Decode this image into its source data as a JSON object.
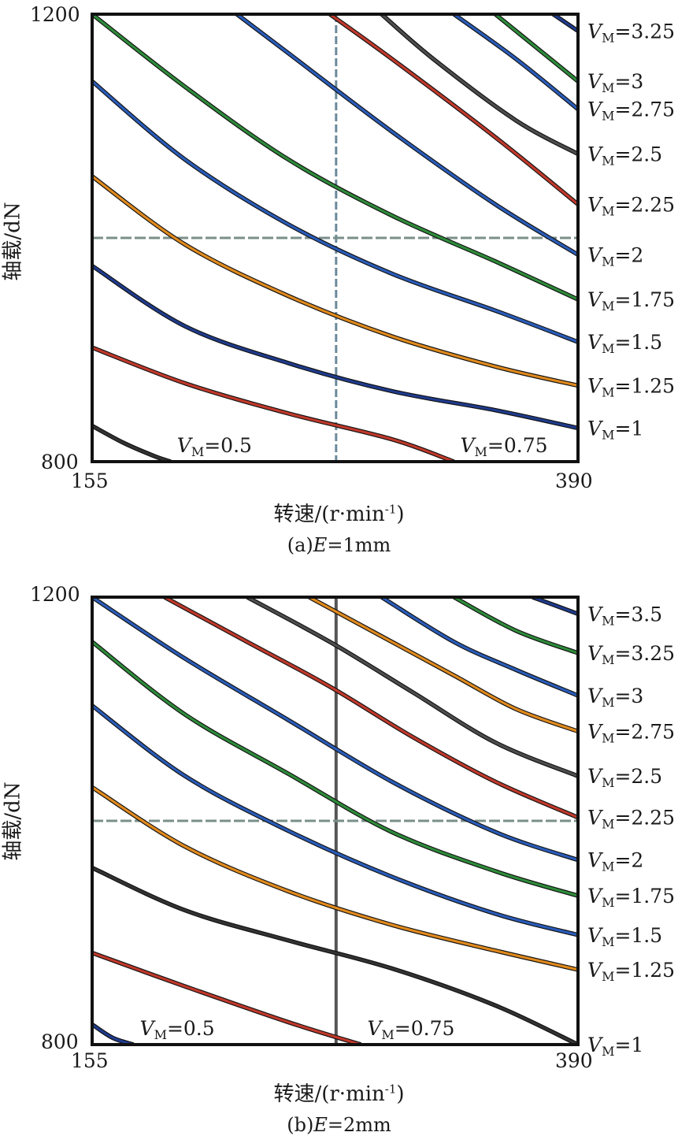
{
  "chart_data": [
    {
      "type": "line",
      "caption": "(a)E=1mm",
      "caption_prefix": "(a)",
      "caption_var": "E",
      "caption_value": "=1mm",
      "xlabel": "转速/(r·min⁻¹)",
      "xlabel_text": "转速/(r·min",
      "xlabel_sup": "-1",
      "xlabel_close": ")",
      "ylabel": "轴载/dN",
      "xlim": [
        155,
        390
      ],
      "ylim": [
        800,
        1200
      ],
      "xticks": [
        "155",
        "390"
      ],
      "yticks": [
        "800",
        "1200"
      ],
      "ref_x": 273,
      "ref_y": 1000,
      "series": [
        {
          "name": "VM=0.5",
          "label_var": "V",
          "label_sub": "M",
          "label_val": "=0.5",
          "color": "#333333",
          "x": [
            155,
            170,
            185,
            193
          ],
          "y": [
            832,
            817,
            805,
            800
          ]
        },
        {
          "name": "VM=0.75",
          "label_var": "V",
          "label_sub": "M",
          "label_val": "=0.75",
          "color": "#c0392b",
          "x": [
            155,
            200,
            250,
            300,
            330
          ],
          "y": [
            902,
            870,
            843,
            820,
            800
          ]
        },
        {
          "name": "VM=1",
          "label_var": "V",
          "label_sub": "M",
          "label_val": "=1",
          "color": "#1f3b8c",
          "x": [
            155,
            200,
            250,
            300,
            350,
            390
          ],
          "y": [
            975,
            921,
            888,
            863,
            846,
            830
          ]
        },
        {
          "name": "VM=1.25",
          "label_var": "V",
          "label_sub": "M",
          "label_val": "=1.25",
          "color": "#e08a1e",
          "x": [
            155,
            200,
            250,
            300,
            350,
            390
          ],
          "y": [
            1055,
            994,
            948,
            912,
            885,
            868
          ]
        },
        {
          "name": "VM=1.5",
          "label_var": "V",
          "label_sub": "M",
          "label_val": "=1.5",
          "color": "#2a5cb8",
          "x": [
            155,
            200,
            250,
            300,
            350,
            390
          ],
          "y": [
            1140,
            1070,
            1012,
            968,
            935,
            907
          ]
        },
        {
          "name": "VM=1.75",
          "label_var": "V",
          "label_sub": "M",
          "label_val": "=1.75",
          "color": "#2e8b3a",
          "x": [
            155,
            200,
            250,
            300,
            350,
            390
          ],
          "y": [
            1200,
            1135,
            1070,
            1020,
            979,
            945
          ]
        },
        {
          "name": "VM=2",
          "label_var": "V",
          "label_sub": "M",
          "label_val": "=2",
          "color": "#2a5cb8",
          "x": [
            225,
            250,
            300,
            350,
            390
          ],
          "y": [
            1200,
            1165,
            1095,
            1030,
            985
          ]
        },
        {
          "name": "VM=2.25",
          "label_var": "V",
          "label_sub": "M",
          "label_val": "=2.25",
          "color": "#c0392b",
          "x": [
            270,
            300,
            350,
            390
          ],
          "y": [
            1200,
            1160,
            1090,
            1030
          ]
        },
        {
          "name": "VM=2.5",
          "label_var": "V",
          "label_sub": "M",
          "label_val": "=2.5",
          "color": "#4d4d4d",
          "x": [
            295,
            320,
            360,
            390
          ],
          "y": [
            1200,
            1160,
            1105,
            1075
          ]
        },
        {
          "name": "VM=2.75",
          "label_var": "V",
          "label_sub": "M",
          "label_val": "=2.75",
          "color": "#2a5cb8",
          "x": [
            330,
            360,
            390
          ],
          "y": [
            1200,
            1160,
            1115
          ]
        },
        {
          "name": "VM=3",
          "label_var": "V",
          "label_sub": "M",
          "label_val": "=3",
          "color": "#2e8b3a",
          "x": [
            350,
            370,
            390
          ],
          "y": [
            1200,
            1170,
            1140
          ]
        },
        {
          "name": "VM=3.25",
          "label_var": "V",
          "label_sub": "M",
          "label_val": "=3.25",
          "color": "#1f3b8c",
          "x": [
            378,
            390
          ],
          "y": [
            1200,
            1185
          ]
        }
      ]
    },
    {
      "type": "line",
      "caption": "(b)E=2mm",
      "caption_prefix": "(b)",
      "caption_var": "E",
      "caption_value": "=2mm",
      "xlabel": "转速/(r·min⁻¹)",
      "xlabel_text": "转速/(r·min",
      "xlabel_sup": "-1",
      "xlabel_close": ")",
      "ylabel": "轴载/dN",
      "xlim": [
        155,
        390
      ],
      "ylim": [
        800,
        1200
      ],
      "xticks": [
        "155",
        "390"
      ],
      "yticks": [
        "800",
        "1200"
      ],
      "ref_x": 273,
      "ref_y": 1000,
      "series": [
        {
          "name": "VM=0.5",
          "label_var": "V",
          "label_sub": "M",
          "label_val": "=0.5",
          "color": "#1f3b8c",
          "x": [
            155,
            165,
            175
          ],
          "y": [
            818,
            806,
            800
          ]
        },
        {
          "name": "VM=0.75",
          "label_var": "V",
          "label_sub": "M",
          "label_val": "=0.75",
          "color": "#c0392b",
          "x": [
            155,
            200,
            250,
            285
          ],
          "y": [
            882,
            852,
            820,
            800
          ]
        },
        {
          "name": "VM=1",
          "label_var": "V",
          "label_sub": "M",
          "label_val": "=1",
          "color": "#333333",
          "x": [
            155,
            200,
            250,
            300,
            350,
            390
          ],
          "y": [
            958,
            920,
            893,
            868,
            835,
            800
          ]
        },
        {
          "name": "VM=1.25",
          "label_var": "V",
          "label_sub": "M",
          "label_val": "=1.25",
          "color": "#e08a1e",
          "x": [
            155,
            200,
            250,
            300,
            350,
            390
          ],
          "y": [
            1030,
            977,
            937,
            907,
            884,
            867
          ]
        },
        {
          "name": "VM=1.5",
          "label_var": "V",
          "label_sub": "M",
          "label_val": "=1.5",
          "color": "#2a5cb8",
          "x": [
            155,
            200,
            250,
            300,
            350,
            390
          ],
          "y": [
            1103,
            1040,
            991,
            950,
            917,
            898
          ]
        },
        {
          "name": "VM=1.75",
          "label_var": "V",
          "label_sub": "M",
          "label_val": "=1.75",
          "color": "#2e8b3a",
          "x": [
            155,
            200,
            250,
            300,
            350,
            390
          ],
          "y": [
            1160,
            1095,
            1042,
            990,
            955,
            933
          ]
        },
        {
          "name": "VM=2",
          "label_var": "V",
          "label_sub": "M",
          "label_val": "=2",
          "color": "#2a5cb8",
          "x": [
            155,
            200,
            250,
            300,
            350,
            390
          ],
          "y": [
            1200,
            1145,
            1090,
            1035,
            990,
            965
          ]
        },
        {
          "name": "VM=2.25",
          "label_var": "V",
          "label_sub": "M",
          "label_val": "=2.25",
          "color": "#c0392b",
          "x": [
            190,
            230,
            270,
            310,
            350,
            390
          ],
          "y": [
            1200,
            1160,
            1120,
            1075,
            1035,
            1003
          ]
        },
        {
          "name": "VM=2.5",
          "label_var": "V",
          "label_sub": "M",
          "label_val": "=2.5",
          "color": "#4d4d4d",
          "x": [
            230,
            270,
            310,
            350,
            390
          ],
          "y": [
            1200,
            1160,
            1115,
            1070,
            1040
          ]
        },
        {
          "name": "VM=2.75",
          "label_var": "V",
          "label_sub": "M",
          "label_val": "=2.75",
          "color": "#e08a1e",
          "x": [
            260,
            290,
            330,
            360,
            390
          ],
          "y": [
            1200,
            1170,
            1130,
            1100,
            1080
          ]
        },
        {
          "name": "VM=3",
          "label_var": "V",
          "label_sub": "M",
          "label_val": "=3",
          "color": "#2a5cb8",
          "x": [
            295,
            330,
            360,
            390
          ],
          "y": [
            1200,
            1160,
            1135,
            1112
          ]
        },
        {
          "name": "VM=3.25",
          "label_var": "V",
          "label_sub": "M",
          "label_val": "=3.25",
          "color": "#2e8b3a",
          "x": [
            330,
            360,
            390
          ],
          "y": [
            1200,
            1170,
            1150
          ]
        },
        {
          "name": "VM=3.5",
          "label_var": "V",
          "label_sub": "M",
          "label_val": "=3.5",
          "color": "#1f3b8c",
          "x": [
            368,
            390
          ],
          "y": [
            1200,
            1185
          ]
        }
      ]
    }
  ]
}
